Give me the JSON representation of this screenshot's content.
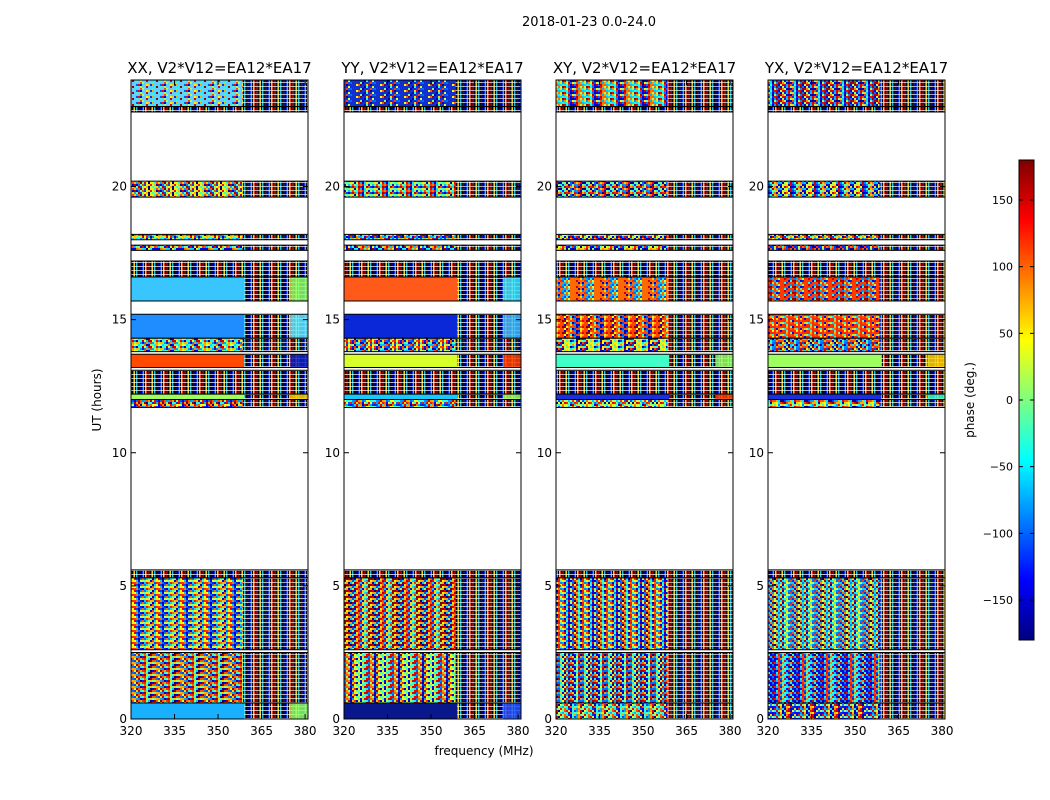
{
  "chart_data": {
    "type": "heatmap",
    "title": "2018-01-23 0.0-24.0",
    "xlabel": "frequency (MHz)",
    "ylabel": "UT (hours)",
    "xlim": [
      320,
      381
    ],
    "ylim": [
      0,
      24
    ],
    "xticks": [
      "320",
      "335",
      "350",
      "365",
      "380"
    ],
    "yticks": [
      "0",
      "5",
      "10",
      "15",
      "20"
    ],
    "panels": [
      {
        "title": "XX, V2*V12=EA12*EA17",
        "bands": [
          {
            "y0": 23.0,
            "y1": 24.0,
            "mode": "noise",
            "bias": "#5fd0ff"
          },
          {
            "y0": 22.8,
            "y1": 23.0,
            "mode": "fringe"
          },
          {
            "y0": 19.6,
            "y1": 20.2,
            "mode": "noise"
          },
          {
            "y0": 18.0,
            "y1": 18.2,
            "mode": "noise"
          },
          {
            "y0": 17.6,
            "y1": 17.8,
            "mode": "noise"
          },
          {
            "y0": 16.6,
            "y1": 17.2,
            "mode": "fringe"
          },
          {
            "y0": 15.7,
            "y1": 16.6,
            "mode": "solid",
            "color": "#39c6ff",
            "alt": "#90ff66"
          },
          {
            "y0": 14.3,
            "y1": 15.2,
            "mode": "solid",
            "color": "#1f8cff",
            "alt": "#66e8ff"
          },
          {
            "y0": 13.8,
            "y1": 14.3,
            "mode": "noise"
          },
          {
            "y0": 13.2,
            "y1": 13.7,
            "mode": "solid",
            "color": "#ff4a00",
            "alt": "#1020c0"
          },
          {
            "y0": 12.2,
            "y1": 13.1,
            "mode": "fringe"
          },
          {
            "y0": 12.0,
            "y1": 12.2,
            "mode": "solid",
            "color": "#9cff5e",
            "alt": "#ffd200"
          },
          {
            "y0": 11.7,
            "y1": 12.0,
            "mode": "noise"
          },
          {
            "y0": 5.3,
            "y1": 5.6,
            "mode": "fringe"
          },
          {
            "y0": 2.6,
            "y1": 5.3,
            "mode": "noise"
          },
          {
            "y0": 0.6,
            "y1": 2.5,
            "mode": "noise"
          },
          {
            "y0": 0.0,
            "y1": 0.6,
            "mode": "solid",
            "color": "#18b0ff",
            "alt": "#90ff66"
          }
        ]
      },
      {
        "title": "YY, V2*V12=EA12*EA17",
        "bands": [
          {
            "y0": 23.0,
            "y1": 24.0,
            "mode": "noise",
            "bias": "#1030d0"
          },
          {
            "y0": 22.8,
            "y1": 23.0,
            "mode": "fringe"
          },
          {
            "y0": 19.6,
            "y1": 20.2,
            "mode": "noise"
          },
          {
            "y0": 18.0,
            "y1": 18.2,
            "mode": "noise"
          },
          {
            "y0": 17.6,
            "y1": 17.8,
            "mode": "noise"
          },
          {
            "y0": 16.6,
            "y1": 17.2,
            "mode": "fringe"
          },
          {
            "y0": 15.7,
            "y1": 16.6,
            "mode": "solid",
            "color": "#ff5a1a",
            "alt": "#40e0ff"
          },
          {
            "y0": 14.3,
            "y1": 15.2,
            "mode": "solid",
            "color": "#0a28d8",
            "alt": "#3fb8ff"
          },
          {
            "y0": 13.8,
            "y1": 14.3,
            "mode": "noise"
          },
          {
            "y0": 13.2,
            "y1": 13.7,
            "mode": "solid",
            "color": "#d8ff2a",
            "alt": "#ff3a00"
          },
          {
            "y0": 12.2,
            "y1": 13.1,
            "mode": "fringe"
          },
          {
            "y0": 12.0,
            "y1": 12.2,
            "mode": "solid",
            "color": "#18c8ff",
            "alt": "#a0ff60"
          },
          {
            "y0": 11.7,
            "y1": 12.0,
            "mode": "noise"
          },
          {
            "y0": 5.3,
            "y1": 5.6,
            "mode": "fringe"
          },
          {
            "y0": 2.6,
            "y1": 5.3,
            "mode": "noise"
          },
          {
            "y0": 0.6,
            "y1": 2.5,
            "mode": "noise"
          },
          {
            "y0": 0.0,
            "y1": 0.6,
            "mode": "solid",
            "color": "#08188c",
            "alt": "#2050ff"
          }
        ]
      },
      {
        "title": "XY, V2*V12=EA12*EA17",
        "bands": [
          {
            "y0": 23.0,
            "y1": 24.0,
            "mode": "noise"
          },
          {
            "y0": 22.8,
            "y1": 23.0,
            "mode": "fringe"
          },
          {
            "y0": 19.6,
            "y1": 20.2,
            "mode": "noise"
          },
          {
            "y0": 18.0,
            "y1": 18.2,
            "mode": "noise"
          },
          {
            "y0": 17.6,
            "y1": 17.8,
            "mode": "noise"
          },
          {
            "y0": 16.6,
            "y1": 17.2,
            "mode": "fringe"
          },
          {
            "y0": 15.7,
            "y1": 16.6,
            "mode": "noise",
            "bias": "#ff6a00"
          },
          {
            "y0": 14.3,
            "y1": 15.2,
            "mode": "noise",
            "bias": "#ff4400"
          },
          {
            "y0": 13.8,
            "y1": 14.3,
            "mode": "noise"
          },
          {
            "y0": 13.2,
            "y1": 13.7,
            "mode": "solid",
            "color": "#40ffc8",
            "alt": "#90ff66"
          },
          {
            "y0": 12.2,
            "y1": 13.1,
            "mode": "fringe"
          },
          {
            "y0": 12.0,
            "y1": 12.2,
            "mode": "solid",
            "color": "#1830e0",
            "alt": "#ff3a00"
          },
          {
            "y0": 11.7,
            "y1": 12.0,
            "mode": "noise"
          },
          {
            "y0": 5.3,
            "y1": 5.6,
            "mode": "fringe"
          },
          {
            "y0": 2.6,
            "y1": 5.3,
            "mode": "noise"
          },
          {
            "y0": 0.6,
            "y1": 2.5,
            "mode": "noise"
          },
          {
            "y0": 0.0,
            "y1": 0.6,
            "mode": "noise"
          }
        ]
      },
      {
        "title": "YX, V2*V12=EA12*EA17",
        "bands": [
          {
            "y0": 23.0,
            "y1": 24.0,
            "mode": "noise"
          },
          {
            "y0": 22.8,
            "y1": 23.0,
            "mode": "fringe"
          },
          {
            "y0": 19.6,
            "y1": 20.2,
            "mode": "noise"
          },
          {
            "y0": 18.0,
            "y1": 18.2,
            "mode": "noise"
          },
          {
            "y0": 17.6,
            "y1": 17.8,
            "mode": "noise"
          },
          {
            "y0": 16.6,
            "y1": 17.2,
            "mode": "fringe"
          },
          {
            "y0": 15.7,
            "y1": 16.6,
            "mode": "noise",
            "bias": "#ff3a00"
          },
          {
            "y0": 14.3,
            "y1": 15.2,
            "mode": "noise",
            "bias": "#ff2a00"
          },
          {
            "y0": 13.8,
            "y1": 14.3,
            "mode": "noise"
          },
          {
            "y0": 13.2,
            "y1": 13.7,
            "mode": "solid",
            "color": "#9cff5e",
            "alt": "#ffd200"
          },
          {
            "y0": 12.2,
            "y1": 13.1,
            "mode": "fringe"
          },
          {
            "y0": 12.0,
            "y1": 12.2,
            "mode": "solid",
            "color": "#1830e0",
            "alt": "#40ffc8"
          },
          {
            "y0": 11.7,
            "y1": 12.0,
            "mode": "noise"
          },
          {
            "y0": 5.3,
            "y1": 5.6,
            "mode": "fringe"
          },
          {
            "y0": 2.6,
            "y1": 5.3,
            "mode": "noise"
          },
          {
            "y0": 0.6,
            "y1": 2.5,
            "mode": "noise"
          },
          {
            "y0": 0.0,
            "y1": 0.6,
            "mode": "noise"
          }
        ]
      }
    ],
    "colorbar": {
      "label": "phase (deg.)",
      "range": [
        -180,
        180
      ],
      "ticks": [
        "150",
        "100",
        "50",
        "0",
        "−50",
        "−100",
        "−150"
      ],
      "colormap": "jet"
    }
  }
}
